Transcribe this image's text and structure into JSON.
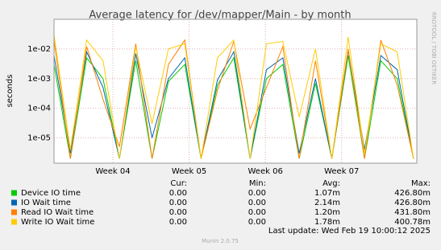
{
  "chart_data": {
    "type": "line",
    "title": "Average latency for /dev/mapper/Main - by month",
    "y_label": "seconds",
    "side_text": "RRDTOOL / TOBI OETIKER",
    "log_y": true,
    "grid": true,
    "ylim": [
      1.4e-06,
      0.1
    ],
    "yticks": [
      {
        "value": 1e-05,
        "label": "1e-05"
      },
      {
        "value": 0.0001,
        "label": "1e-04"
      },
      {
        "value": 0.001,
        "label": "1e-03"
      },
      {
        "value": 0.01,
        "label": "1e-02"
      }
    ],
    "xlim": [
      0,
      33.3
    ],
    "xticks": [
      {
        "value": 5.4,
        "label": "Week 04"
      },
      {
        "value": 12.4,
        "label": "Week 05"
      },
      {
        "value": 19.4,
        "label": "Week 06"
      },
      {
        "value": 26.4,
        "label": "Week 07"
      }
    ],
    "x": [
      0,
      1.5,
      3,
      4.5,
      6,
      7.5,
      9,
      10.5,
      12,
      13.5,
      15,
      16.5,
      18,
      19.5,
      21,
      22.5,
      24,
      25.5,
      27,
      28.5,
      30,
      31.5,
      33
    ],
    "series": [
      {
        "name": "Device IO time",
        "color": "#00cc00",
        "values": [
          0.003,
          2e-06,
          0.005,
          0.001,
          2e-06,
          0.004,
          2e-06,
          0.0008,
          0.003,
          2e-06,
          0.0006,
          0.005,
          2e-06,
          0.001,
          0.003,
          2e-06,
          0.0007,
          2e-06,
          0.006,
          2e-06,
          0.004,
          0.001,
          2e-06
        ]
      },
      {
        "name": "IO Wait time",
        "color": "#0066b3",
        "values": [
          0.006,
          3e-06,
          0.008,
          0.0005,
          2e-06,
          0.007,
          1e-05,
          0.001,
          0.005,
          2e-06,
          0.0009,
          0.008,
          2e-06,
          0.002,
          0.005,
          3e-06,
          0.001,
          2e-06,
          0.009,
          4e-06,
          0.006,
          0.002,
          2e-06
        ]
      },
      {
        "name": "Read IO Wait time",
        "color": "#ff8000",
        "values": [
          0.02,
          2e-06,
          0.012,
          0.0002,
          5e-06,
          0.015,
          2e-06,
          0.003,
          0.02,
          2e-06,
          0.0004,
          0.018,
          2e-05,
          0.0005,
          0.012,
          2e-06,
          0.004,
          2e-06,
          0.01,
          2e-06,
          0.02,
          0.0006,
          2e-06
        ]
      },
      {
        "name": "Write IO Wait time",
        "color": "#ffcc00",
        "values": [
          0.03,
          4e-06,
          0.02,
          0.004,
          2e-06,
          0.012,
          3e-05,
          0.01,
          0.015,
          2e-06,
          0.005,
          0.02,
          2e-06,
          0.015,
          0.018,
          5e-05,
          0.01,
          2e-06,
          0.025,
          3e-06,
          0.015,
          0.008,
          2e-06
        ]
      }
    ],
    "legend": {
      "headers": [
        "Cur:",
        "Min:",
        "Avg:",
        "Max:"
      ],
      "rows": [
        [
          "0.00",
          "0.00",
          "1.07m",
          "426.80m"
        ],
        [
          "0.00",
          "0.00",
          "2.14m",
          "426.80m"
        ],
        [
          "0.00",
          "0.00",
          "1.20m",
          "431.80m"
        ],
        [
          "0.00",
          "0.00",
          "1.78m",
          "400.78m"
        ]
      ]
    },
    "last_update": "Last update: Wed Feb 19 10:00:12 2025",
    "footer": "Munin 2.0.75"
  }
}
